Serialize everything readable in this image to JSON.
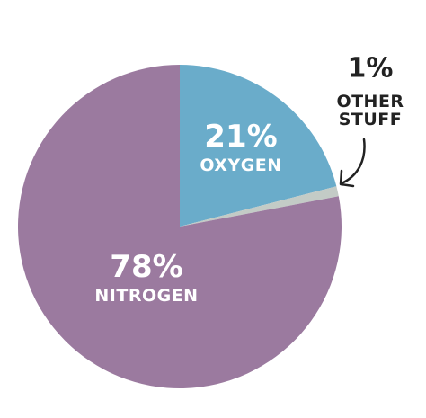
{
  "chart_data": {
    "type": "pie",
    "categories": [
      "OXYGEN",
      "OTHER STUFF",
      "NITROGEN"
    ],
    "values": [
      21,
      1,
      78
    ],
    "value_labels": [
      "21%",
      "1%",
      "78%"
    ],
    "colors": [
      "#6aacca",
      "#c3cbc6",
      "#9b7a9f"
    ]
  }
}
